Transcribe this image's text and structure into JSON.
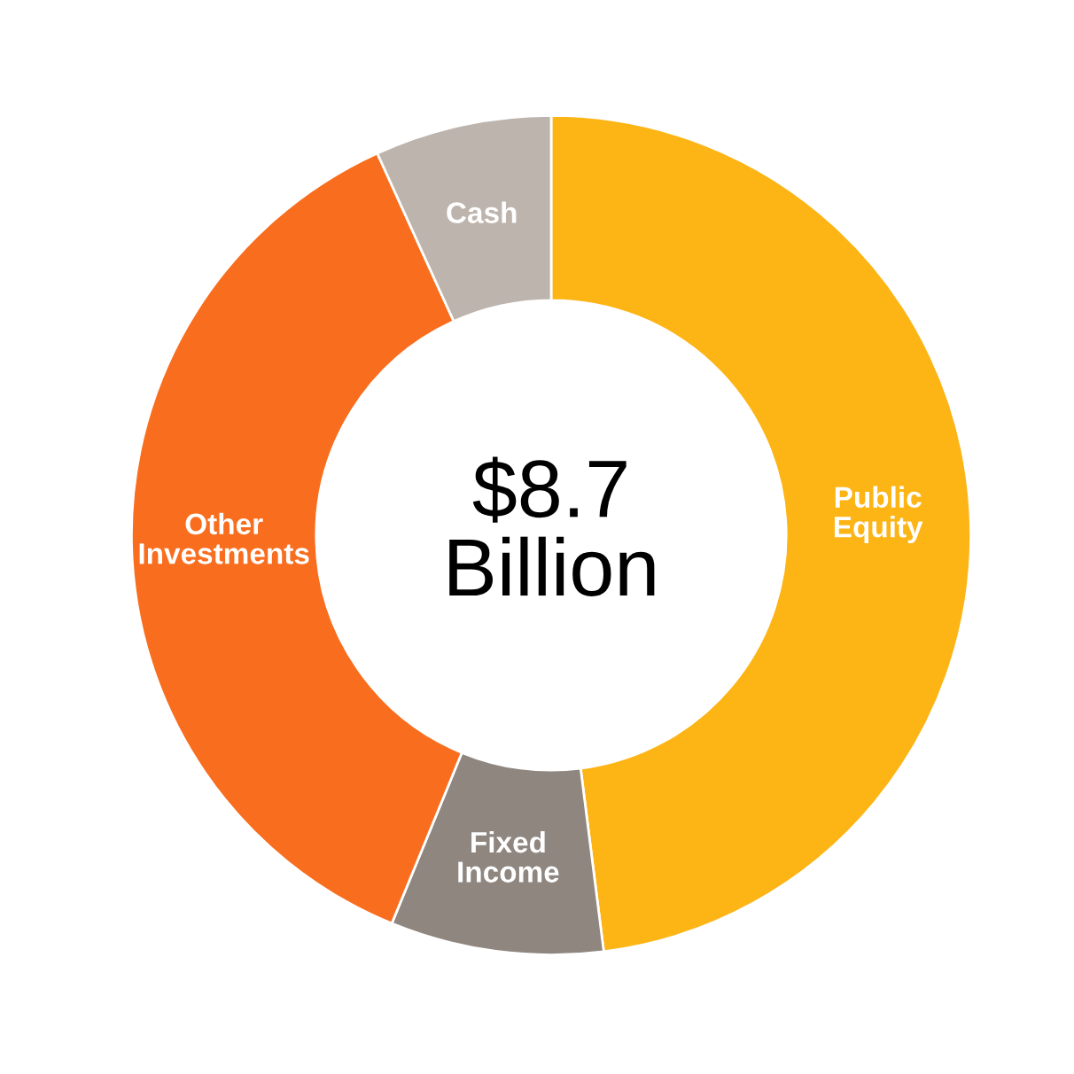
{
  "chart_data": {
    "type": "donut",
    "categories": [
      "Public Equity",
      "Fixed Income",
      "Other Investments",
      "Cash"
    ],
    "values": [
      48,
      8.2,
      37,
      6.8
    ],
    "colors": [
      "#fdb415",
      "#8f8680",
      "#f96d1e",
      "#bdb4ad"
    ],
    "annotations": [
      "$8.7\nBillion"
    ],
    "legend": false
  }
}
